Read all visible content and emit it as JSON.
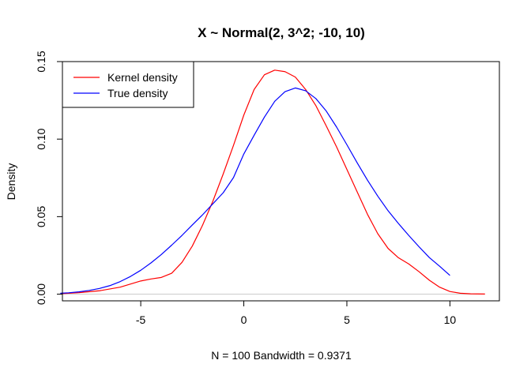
{
  "chart_data": {
    "type": "line",
    "title": "X ~ Normal(2, 3^2; -10, 10)",
    "xlabel": "N = 100   Bandwidth = 0.9371",
    "ylabel": "Density",
    "xlim": [
      -8.8,
      12.4
    ],
    "ylim": [
      -0.0043,
      0.15
    ],
    "x_ticks": [
      -5,
      0,
      5,
      10
    ],
    "x_tick_labels": [
      "-5",
      "0",
      "5",
      "10"
    ],
    "y_ticks": [
      0.0,
      0.05,
      0.1,
      0.15
    ],
    "y_tick_labels": [
      "0.00",
      "0.05",
      "0.10",
      "0.15"
    ],
    "grid": false,
    "legend": {
      "position": "top-left",
      "entries": [
        "Kernel density",
        "True density"
      ]
    },
    "baseline": {
      "y": 0,
      "x_from": -8.9,
      "x_to": 11.7,
      "color": "#cccccc"
    },
    "series": [
      {
        "name": "Kernel density",
        "color": "#ff0000",
        "x": [
          -8.9,
          -8,
          -7,
          -6,
          -5,
          -4.5,
          -4,
          -3.5,
          -3,
          -2.5,
          -2,
          -1.5,
          -1,
          -0.5,
          0,
          0.5,
          1,
          1.5,
          2,
          2.5,
          3,
          3.5,
          4,
          4.5,
          5,
          5.5,
          6,
          6.5,
          7,
          7.5,
          8,
          8.5,
          9,
          9.5,
          10,
          10.5,
          11,
          11.7
        ],
        "y": [
          0.0003,
          0.001,
          0.0022,
          0.0045,
          0.0085,
          0.0098,
          0.0108,
          0.0135,
          0.0205,
          0.031,
          0.0445,
          0.06,
          0.0775,
          0.096,
          0.1155,
          0.132,
          0.1415,
          0.1445,
          0.1435,
          0.14,
          0.132,
          0.1215,
          0.1085,
          0.095,
          0.0805,
          0.066,
          0.0515,
          0.039,
          0.0295,
          0.0235,
          0.0195,
          0.0145,
          0.009,
          0.0045,
          0.0017,
          0.0006,
          0.0002,
          0.0001
        ]
      },
      {
        "name": "True density",
        "color": "#0000ff",
        "x": [
          -8.9,
          -8.5,
          -8,
          -7.5,
          -7,
          -6.5,
          -6,
          -5.5,
          -5,
          -4.5,
          -4,
          -3.5,
          -3,
          -2.5,
          -2,
          -1.5,
          -1,
          -0.5,
          0,
          0.5,
          1,
          1.5,
          2,
          2.5,
          3,
          3.5,
          4,
          4.5,
          5,
          5.5,
          6,
          6.5,
          7,
          7.5,
          8,
          8.5,
          9,
          9.5,
          10
        ],
        "y": [
          0.0006,
          0.0009,
          0.0015,
          0.0024,
          0.0037,
          0.0055,
          0.0081,
          0.0114,
          0.0154,
          0.0202,
          0.0256,
          0.0316,
          0.0379,
          0.0446,
          0.0512,
          0.0583,
          0.0654,
          0.0752,
          0.0904,
          0.1025,
          0.1142,
          0.1244,
          0.1306,
          0.133,
          0.1312,
          0.1261,
          0.1181,
          0.1078,
          0.0964,
          0.0847,
          0.0735,
          0.0632,
          0.0538,
          0.0456,
          0.0379,
          0.0306,
          0.0236,
          0.018,
          0.0121
        ]
      }
    ]
  }
}
